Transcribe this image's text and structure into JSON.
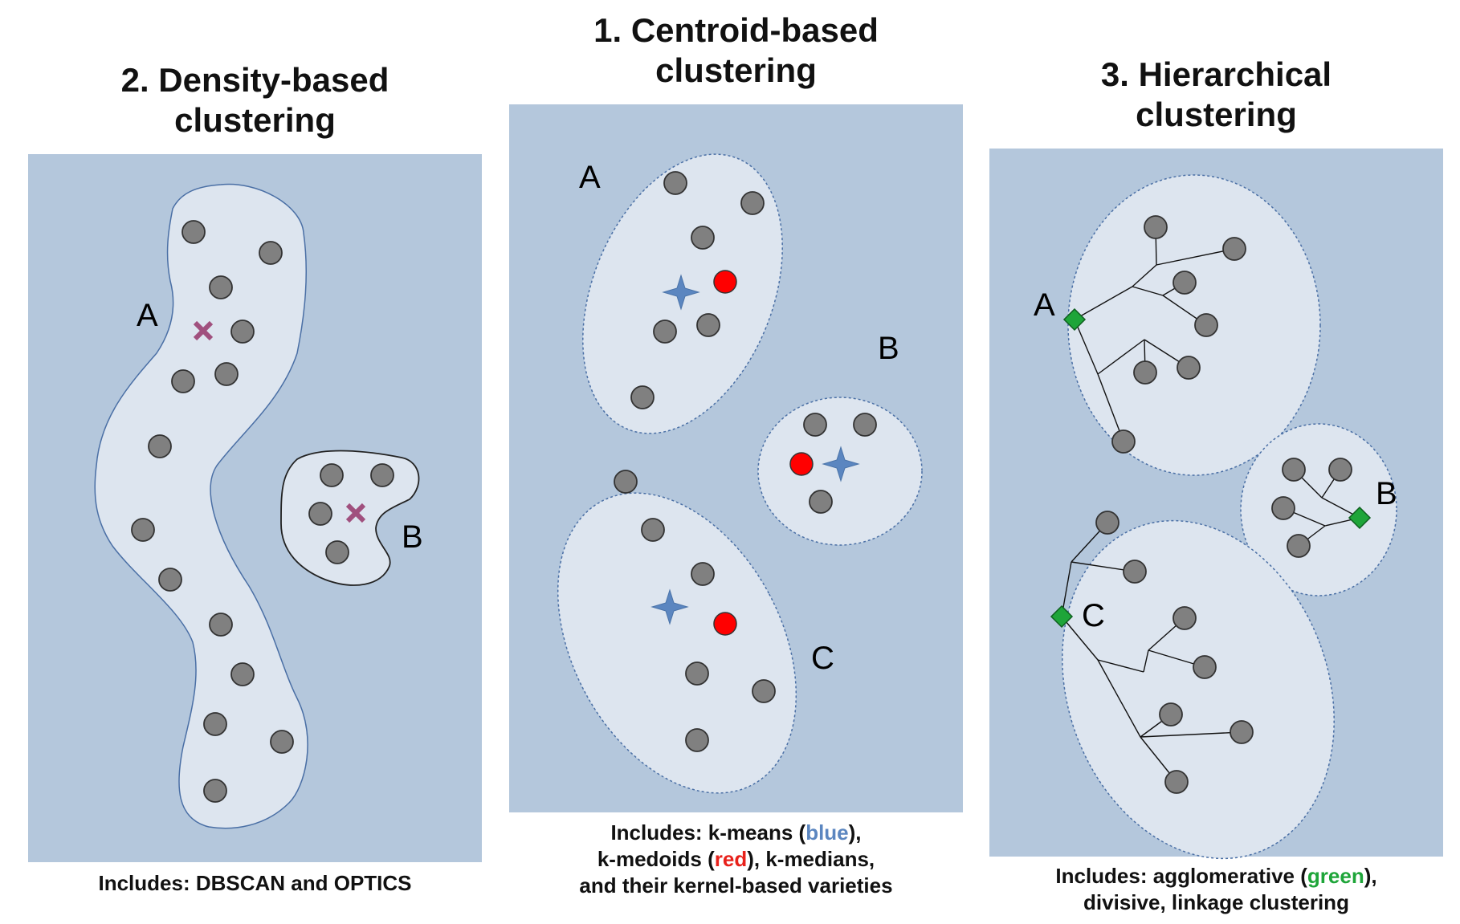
{
  "panels": [
    {
      "title_line1": "2. Density-based",
      "title_line2": "clustering",
      "caption": "Includes: DBSCAN and OPTICS",
      "cluster_labels": [
        "A",
        "B"
      ]
    },
    {
      "title_line1": "1. Centroid-based",
      "title_line2": "clustering",
      "caption_line1_pre": "Includes: k-means (",
      "caption_line1_hl": "blue",
      "caption_line1_post": "),",
      "caption_line2_pre": "k-medoids (",
      "caption_line2_hl": "red",
      "caption_line2_post": "), k-medians,",
      "caption_line3": "and their kernel-based varieties",
      "cluster_labels": [
        "A",
        "B",
        "C"
      ]
    },
    {
      "title_line1": "3. Hierarchical",
      "title_line2": "clustering",
      "caption_line1_pre": "Includes: agglomerative (",
      "caption_line1_hl": "green",
      "caption_line1_post": "),",
      "caption_line2": "divisive, linkage clustering",
      "cluster_labels": [
        "A",
        "B",
        "C"
      ]
    }
  ],
  "colors": {
    "panel_bg": "#b4c7dc",
    "cluster_fill": "#dde5ef",
    "point": "#808080",
    "density_center": "#a0507e",
    "centroid_star": "#5b86c0",
    "medoid": "#ff0000",
    "hierarchical_root": "#1ea539"
  },
  "icons": {
    "density_center": "x-mark-icon",
    "kmeans_centroid": "four-point-star-icon",
    "kmedoid": "red-dot-icon",
    "hierarchy_root": "green-diamond-icon"
  }
}
